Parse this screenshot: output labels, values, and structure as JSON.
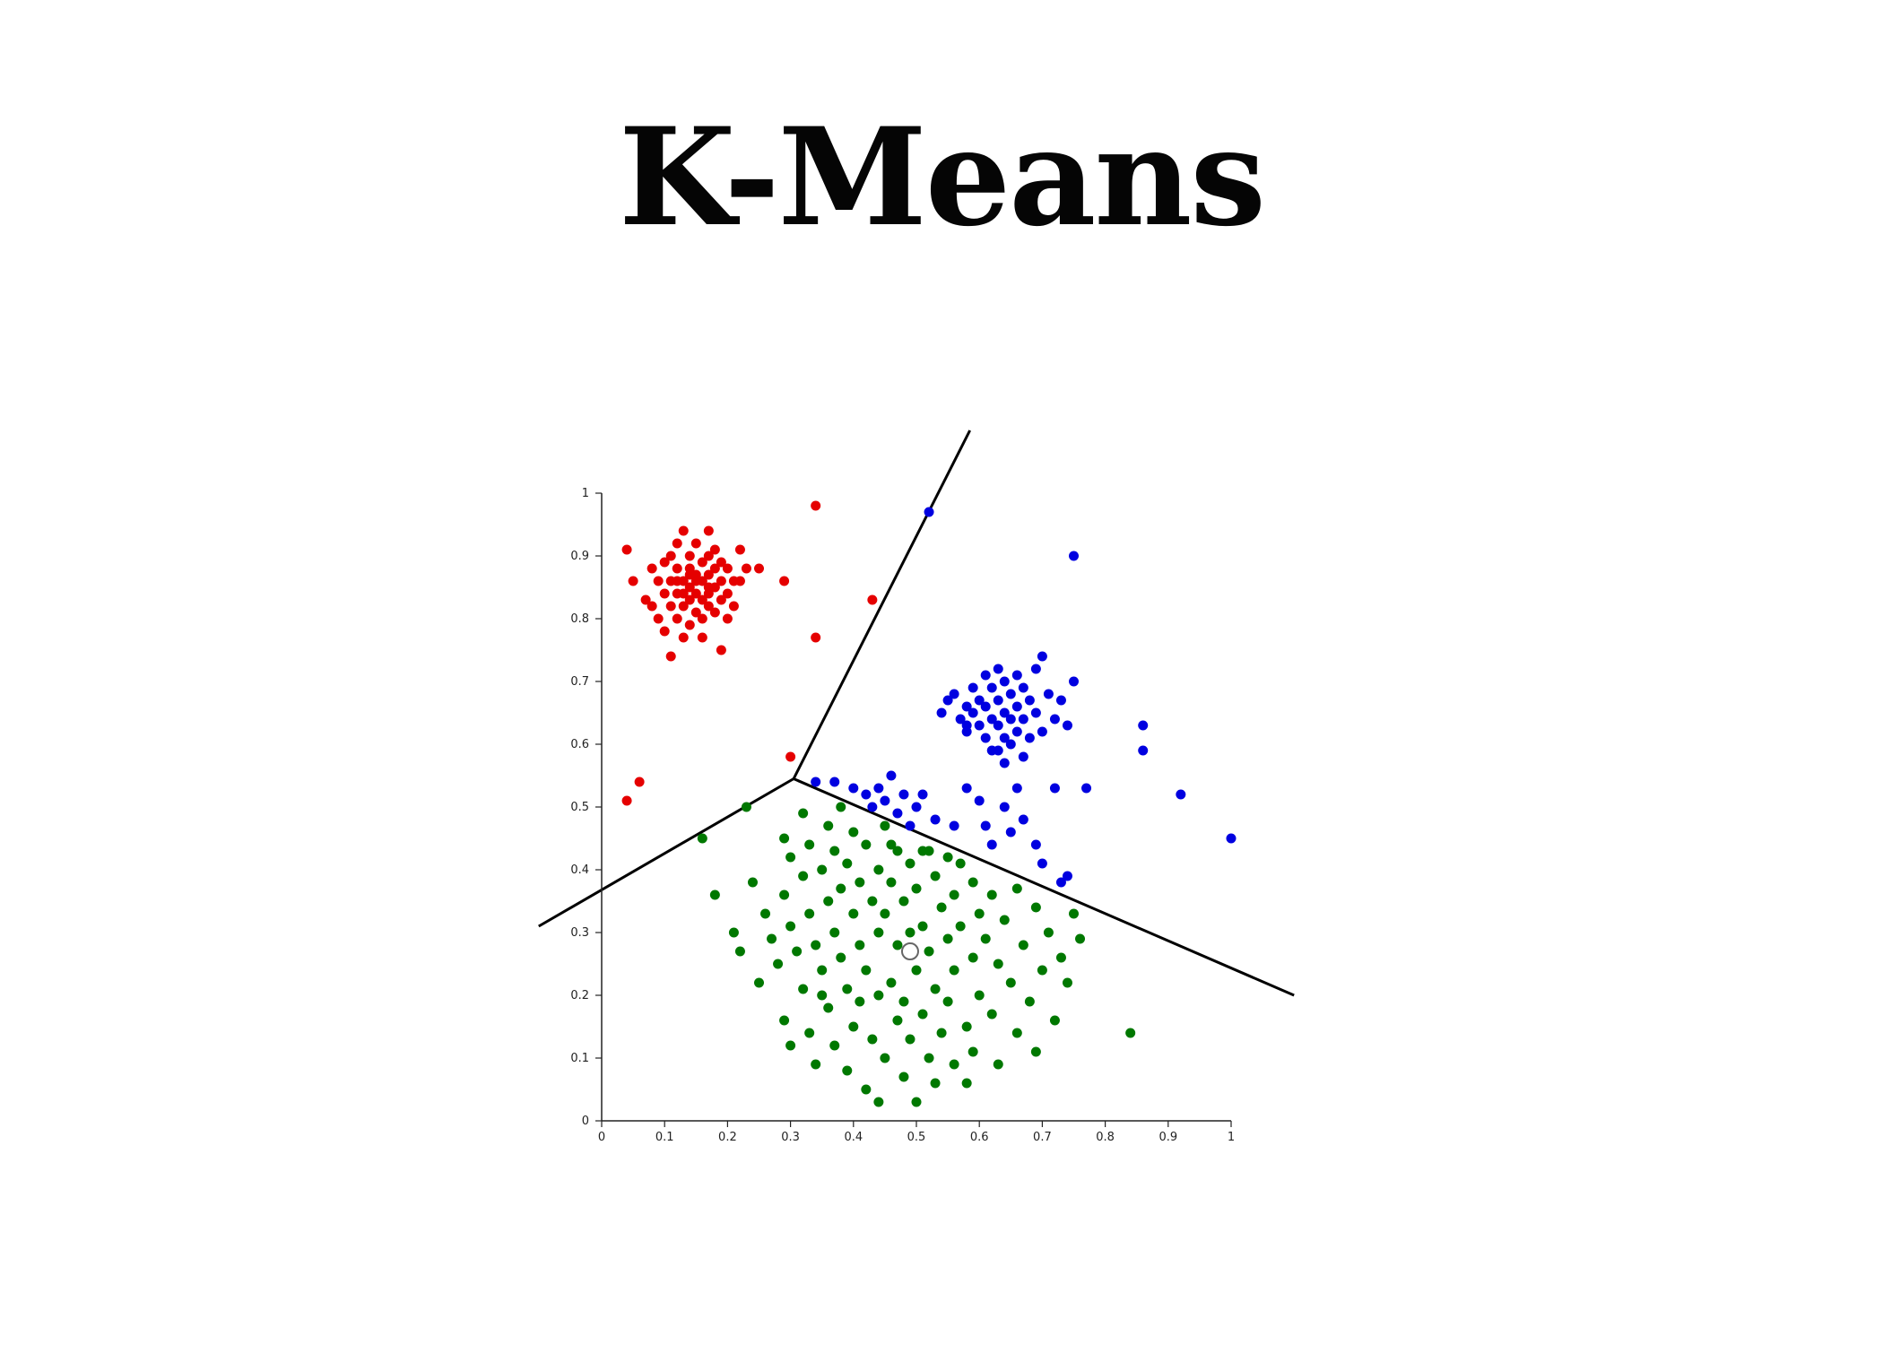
{
  "title": "K-Means",
  "chart_data": {
    "type": "scatter",
    "title": "K-Means",
    "xlabel": "",
    "ylabel": "",
    "xlim": [
      0,
      1
    ],
    "ylim": [
      0,
      1
    ],
    "grid": false,
    "x_ticks": [
      "0",
      "0.1",
      "0.2",
      "0.3",
      "0.4",
      "0.5",
      "0.6",
      "0.7",
      "0.8",
      "0.9",
      "1"
    ],
    "y_ticks": [
      "0",
      "0.1",
      "0.2",
      "0.3",
      "0.4",
      "0.5",
      "0.6",
      "0.7",
      "0.8",
      "0.9",
      "1"
    ],
    "boundary_lines": [
      {
        "x": [
          -0.1,
          0.305
        ],
        "y": [
          0.31,
          0.545
        ]
      },
      {
        "x": [
          0.305,
          0.585
        ],
        "y": [
          0.545,
          1.1
        ]
      },
      {
        "x": [
          0.305,
          1.1
        ],
        "y": [
          0.545,
          0.2
        ]
      }
    ],
    "centroid": {
      "x": 0.49,
      "y": 0.27
    },
    "series": [
      {
        "color": "#e50000",
        "points": [
          [
            0.04,
            0.91
          ],
          [
            0.05,
            0.86
          ],
          [
            0.07,
            0.83
          ],
          [
            0.08,
            0.88
          ],
          [
            0.08,
            0.82
          ],
          [
            0.09,
            0.86
          ],
          [
            0.09,
            0.8
          ],
          [
            0.1,
            0.89
          ],
          [
            0.1,
            0.84
          ],
          [
            0.1,
            0.78
          ],
          [
            0.11,
            0.9
          ],
          [
            0.11,
            0.86
          ],
          [
            0.11,
            0.82
          ],
          [
            0.12,
            0.92
          ],
          [
            0.12,
            0.88
          ],
          [
            0.12,
            0.84
          ],
          [
            0.12,
            0.8
          ],
          [
            0.13,
            0.94
          ],
          [
            0.13,
            0.86
          ],
          [
            0.13,
            0.82
          ],
          [
            0.13,
            0.77
          ],
          [
            0.14,
            0.9
          ],
          [
            0.14,
            0.88
          ],
          [
            0.14,
            0.85
          ],
          [
            0.14,
            0.83
          ],
          [
            0.14,
            0.79
          ],
          [
            0.15,
            0.92
          ],
          [
            0.15,
            0.87
          ],
          [
            0.15,
            0.84
          ],
          [
            0.15,
            0.81
          ],
          [
            0.16,
            0.89
          ],
          [
            0.16,
            0.86
          ],
          [
            0.16,
            0.83
          ],
          [
            0.16,
            0.8
          ],
          [
            0.16,
            0.77
          ],
          [
            0.17,
            0.94
          ],
          [
            0.17,
            0.9
          ],
          [
            0.17,
            0.87
          ],
          [
            0.17,
            0.84
          ],
          [
            0.17,
            0.82
          ],
          [
            0.18,
            0.91
          ],
          [
            0.18,
            0.88
          ],
          [
            0.18,
            0.85
          ],
          [
            0.18,
            0.81
          ],
          [
            0.19,
            0.89
          ],
          [
            0.19,
            0.86
          ],
          [
            0.19,
            0.83
          ],
          [
            0.2,
            0.88
          ],
          [
            0.2,
            0.84
          ],
          [
            0.2,
            0.8
          ],
          [
            0.21,
            0.86
          ],
          [
            0.21,
            0.82
          ],
          [
            0.22,
            0.91
          ],
          [
            0.22,
            0.86
          ],
          [
            0.23,
            0.88
          ],
          [
            0.11,
            0.74
          ],
          [
            0.19,
            0.75
          ],
          [
            0.25,
            0.88
          ],
          [
            0.29,
            0.86
          ],
          [
            0.34,
            0.98
          ],
          [
            0.34,
            0.77
          ],
          [
            0.43,
            0.83
          ],
          [
            0.3,
            0.58
          ],
          [
            0.06,
            0.54
          ],
          [
            0.04,
            0.51
          ],
          [
            0.13,
            0.84
          ],
          [
            0.15,
            0.86
          ],
          [
            0.17,
            0.85
          ],
          [
            0.12,
            0.86
          ],
          [
            0.14,
            0.87
          ]
        ]
      },
      {
        "color": "#0000e0",
        "points": [
          [
            0.52,
            0.97
          ],
          [
            0.75,
            0.9
          ],
          [
            0.54,
            0.65
          ],
          [
            0.55,
            0.67
          ],
          [
            0.56,
            0.68
          ],
          [
            0.57,
            0.64
          ],
          [
            0.58,
            0.66
          ],
          [
            0.58,
            0.62
          ],
          [
            0.59,
            0.69
          ],
          [
            0.59,
            0.65
          ],
          [
            0.6,
            0.63
          ],
          [
            0.6,
            0.67
          ],
          [
            0.61,
            0.71
          ],
          [
            0.61,
            0.66
          ],
          [
            0.61,
            0.61
          ],
          [
            0.62,
            0.69
          ],
          [
            0.62,
            0.64
          ],
          [
            0.62,
            0.59
          ],
          [
            0.63,
            0.72
          ],
          [
            0.63,
            0.67
          ],
          [
            0.63,
            0.63
          ],
          [
            0.64,
            0.7
          ],
          [
            0.64,
            0.65
          ],
          [
            0.64,
            0.61
          ],
          [
            0.64,
            0.57
          ],
          [
            0.65,
            0.68
          ],
          [
            0.65,
            0.64
          ],
          [
            0.65,
            0.6
          ],
          [
            0.66,
            0.71
          ],
          [
            0.66,
            0.66
          ],
          [
            0.66,
            0.62
          ],
          [
            0.67,
            0.69
          ],
          [
            0.67,
            0.64
          ],
          [
            0.67,
            0.58
          ],
          [
            0.68,
            0.67
          ],
          [
            0.68,
            0.61
          ],
          [
            0.69,
            0.72
          ],
          [
            0.69,
            0.65
          ],
          [
            0.7,
            0.74
          ],
          [
            0.7,
            0.62
          ],
          [
            0.71,
            0.68
          ],
          [
            0.72,
            0.64
          ],
          [
            0.73,
            0.67
          ],
          [
            0.74,
            0.63
          ],
          [
            0.75,
            0.7
          ],
          [
            0.86,
            0.63
          ],
          [
            0.86,
            0.59
          ],
          [
            0.92,
            0.52
          ],
          [
            1.0,
            0.45
          ],
          [
            0.77,
            0.53
          ],
          [
            0.34,
            0.54
          ],
          [
            0.37,
            0.54
          ],
          [
            0.4,
            0.53
          ],
          [
            0.42,
            0.52
          ],
          [
            0.43,
            0.5
          ],
          [
            0.44,
            0.53
          ],
          [
            0.45,
            0.51
          ],
          [
            0.46,
            0.55
          ],
          [
            0.47,
            0.49
          ],
          [
            0.48,
            0.52
          ],
          [
            0.49,
            0.47
          ],
          [
            0.5,
            0.5
          ],
          [
            0.51,
            0.52
          ],
          [
            0.53,
            0.48
          ],
          [
            0.56,
            0.47
          ],
          [
            0.58,
            0.53
          ],
          [
            0.6,
            0.51
          ],
          [
            0.61,
            0.47
          ],
          [
            0.62,
            0.44
          ],
          [
            0.64,
            0.5
          ],
          [
            0.65,
            0.46
          ],
          [
            0.66,
            0.53
          ],
          [
            0.67,
            0.48
          ],
          [
            0.69,
            0.44
          ],
          [
            0.7,
            0.41
          ],
          [
            0.74,
            0.39
          ],
          [
            0.73,
            0.38
          ],
          [
            0.72,
            0.53
          ],
          [
            0.58,
            0.63
          ],
          [
            0.63,
            0.59
          ]
        ]
      },
      {
        "color": "#007800",
        "points": [
          [
            0.16,
            0.45
          ],
          [
            0.18,
            0.36
          ],
          [
            0.23,
            0.5
          ],
          [
            0.21,
            0.3
          ],
          [
            0.22,
            0.27
          ],
          [
            0.24,
            0.38
          ],
          [
            0.25,
            0.22
          ],
          [
            0.26,
            0.33
          ],
          [
            0.27,
            0.29
          ],
          [
            0.28,
            0.25
          ],
          [
            0.29,
            0.45
          ],
          [
            0.29,
            0.36
          ],
          [
            0.29,
            0.16
          ],
          [
            0.3,
            0.42
          ],
          [
            0.3,
            0.31
          ],
          [
            0.3,
            0.12
          ],
          [
            0.31,
            0.27
          ],
          [
            0.32,
            0.49
          ],
          [
            0.32,
            0.39
          ],
          [
            0.32,
            0.21
          ],
          [
            0.33,
            0.44
          ],
          [
            0.33,
            0.33
          ],
          [
            0.33,
            0.14
          ],
          [
            0.34,
            0.28
          ],
          [
            0.34,
            0.09
          ],
          [
            0.35,
            0.4
          ],
          [
            0.35,
            0.24
          ],
          [
            0.36,
            0.47
          ],
          [
            0.36,
            0.35
          ],
          [
            0.36,
            0.18
          ],
          [
            0.37,
            0.43
          ],
          [
            0.37,
            0.3
          ],
          [
            0.37,
            0.12
          ],
          [
            0.38,
            0.5
          ],
          [
            0.38,
            0.37
          ],
          [
            0.38,
            0.26
          ],
          [
            0.39,
            0.41
          ],
          [
            0.39,
            0.21
          ],
          [
            0.39,
            0.08
          ],
          [
            0.4,
            0.46
          ],
          [
            0.4,
            0.33
          ],
          [
            0.4,
            0.15
          ],
          [
            0.41,
            0.38
          ],
          [
            0.41,
            0.28
          ],
          [
            0.41,
            0.19
          ],
          [
            0.42,
            0.44
          ],
          [
            0.42,
            0.24
          ],
          [
            0.42,
            0.05
          ],
          [
            0.43,
            0.35
          ],
          [
            0.43,
            0.13
          ],
          [
            0.44,
            0.4
          ],
          [
            0.44,
            0.3
          ],
          [
            0.44,
            0.2
          ],
          [
            0.44,
            0.03
          ],
          [
            0.45,
            0.47
          ],
          [
            0.45,
            0.33
          ],
          [
            0.45,
            0.1
          ],
          [
            0.46,
            0.38
          ],
          [
            0.46,
            0.22
          ],
          [
            0.47,
            0.43
          ],
          [
            0.47,
            0.28
          ],
          [
            0.47,
            0.16
          ],
          [
            0.48,
            0.35
          ],
          [
            0.48,
            0.19
          ],
          [
            0.48,
            0.07
          ],
          [
            0.49,
            0.41
          ],
          [
            0.49,
            0.3
          ],
          [
            0.49,
            0.13
          ],
          [
            0.5,
            0.37
          ],
          [
            0.5,
            0.24
          ],
          [
            0.5,
            0.03
          ],
          [
            0.51,
            0.43
          ],
          [
            0.51,
            0.31
          ],
          [
            0.51,
            0.17
          ],
          [
            0.52,
            0.27
          ],
          [
            0.52,
            0.1
          ],
          [
            0.53,
            0.39
          ],
          [
            0.53,
            0.21
          ],
          [
            0.53,
            0.06
          ],
          [
            0.54,
            0.34
          ],
          [
            0.54,
            0.14
          ],
          [
            0.55,
            0.42
          ],
          [
            0.55,
            0.29
          ],
          [
            0.55,
            0.19
          ],
          [
            0.56,
            0.36
          ],
          [
            0.56,
            0.24
          ],
          [
            0.56,
            0.09
          ],
          [
            0.57,
            0.41
          ],
          [
            0.57,
            0.31
          ],
          [
            0.58,
            0.15
          ],
          [
            0.58,
            0.06
          ],
          [
            0.59,
            0.38
          ],
          [
            0.59,
            0.26
          ],
          [
            0.59,
            0.11
          ],
          [
            0.6,
            0.33
          ],
          [
            0.6,
            0.2
          ],
          [
            0.61,
            0.29
          ],
          [
            0.62,
            0.36
          ],
          [
            0.62,
            0.17
          ],
          [
            0.63,
            0.25
          ],
          [
            0.63,
            0.09
          ],
          [
            0.64,
            0.32
          ],
          [
            0.65,
            0.22
          ],
          [
            0.66,
            0.37
          ],
          [
            0.66,
            0.14
          ],
          [
            0.67,
            0.28
          ],
          [
            0.68,
            0.19
          ],
          [
            0.69,
            0.34
          ],
          [
            0.69,
            0.11
          ],
          [
            0.7,
            0.24
          ],
          [
            0.71,
            0.3
          ],
          [
            0.72,
            0.16
          ],
          [
            0.73,
            0.26
          ],
          [
            0.74,
            0.22
          ],
          [
            0.75,
            0.33
          ],
          [
            0.76,
            0.29
          ],
          [
            0.84,
            0.14
          ],
          [
            0.46,
            0.44
          ],
          [
            0.52,
            0.43
          ],
          [
            0.35,
            0.2
          ]
        ]
      }
    ]
  }
}
